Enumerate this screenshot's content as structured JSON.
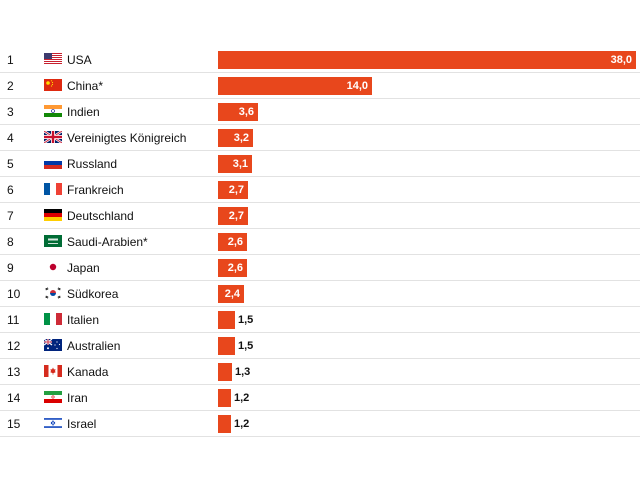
{
  "colors": {
    "bar": "#e8471c",
    "value_inside": "#ffffff",
    "value_outside": "#111111",
    "rule": "#e2e2e2"
  },
  "chart_data": {
    "type": "bar",
    "orientation": "horizontal",
    "title": "",
    "xlabel": "",
    "ylabel": "",
    "xlim": [
      0,
      38
    ],
    "grid": false,
    "legend": "none",
    "categories": [
      "USA",
      "China*",
      "Indien",
      "Vereinigtes Königreich",
      "Russland",
      "Frankreich",
      "Deutschland",
      "Saudi-Arabien*",
      "Japan",
      "Südkorea",
      "Italien",
      "Australien",
      "Kanada",
      "Iran",
      "Israel"
    ],
    "ranks": [
      "1",
      "2",
      "3",
      "4",
      "5",
      "6",
      "7",
      "8",
      "9",
      "10",
      "11",
      "12",
      "13",
      "14",
      "15"
    ],
    "flags": [
      "usa-flag-icon",
      "china-flag-icon",
      "india-flag-icon",
      "uk-flag-icon",
      "russia-flag-icon",
      "france-flag-icon",
      "germany-flag-icon",
      "saudi-arabia-flag-icon",
      "japan-flag-icon",
      "south-korea-flag-icon",
      "italy-flag-icon",
      "australia-flag-icon",
      "canada-flag-icon",
      "iran-flag-icon",
      "israel-flag-icon"
    ],
    "values": [
      38.0,
      14.0,
      3.6,
      3.2,
      3.1,
      2.7,
      2.7,
      2.6,
      2.6,
      2.4,
      1.5,
      1.5,
      1.3,
      1.2,
      1.2
    ],
    "value_labels": [
      "38,0",
      "14,0",
      "3,6",
      "3,2",
      "3,1",
      "2,7",
      "2,7",
      "2,6",
      "2,6",
      "2,4",
      "1,5",
      "1,5",
      "1,3",
      "1,2",
      "1,2"
    ]
  }
}
